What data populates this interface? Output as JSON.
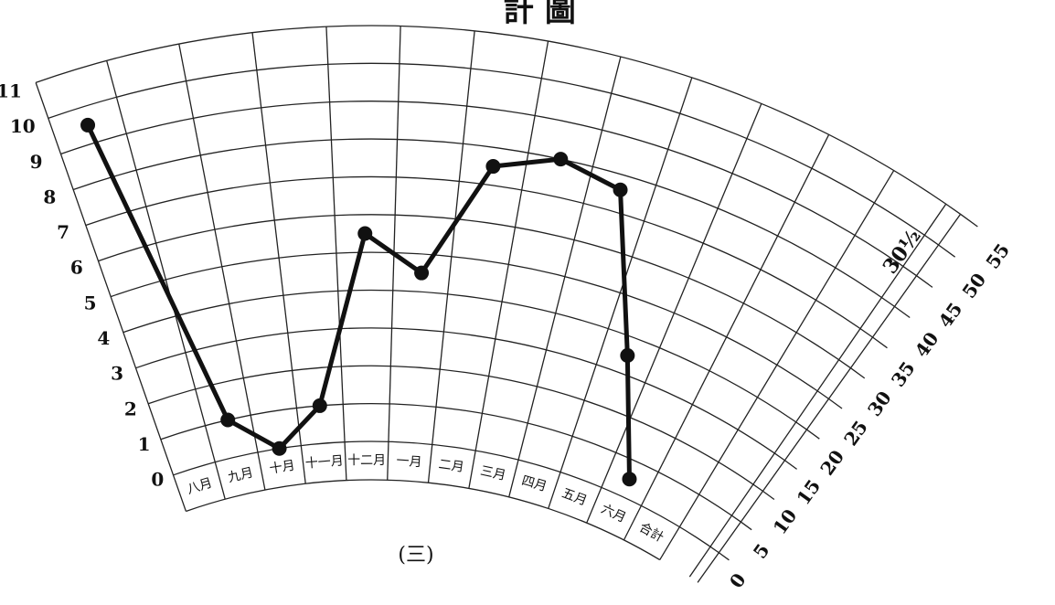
{
  "chart_data": {
    "type": "line",
    "title": "計 圖",
    "subtitle": "(三)",
    "categories": [
      "八月",
      "九月",
      "十月",
      "十一月",
      "十二月",
      "一月",
      "二月",
      "三月",
      "四月",
      "五月",
      "六月",
      "合計"
    ],
    "series": [
      {
        "color": "#111111",
        "values": [
          9.5,
          1,
          0,
          1,
          5.5,
          4.5,
          7.5,
          8,
          7.6,
          3.5,
          0.5,
          null
        ]
      }
    ],
    "ylim": [
      0,
      11
    ],
    "yticks": [
      0,
      1,
      2,
      3,
      4,
      5,
      6,
      7,
      8,
      9,
      10,
      11
    ],
    "y2lim": [
      0,
      55
    ],
    "y2ticks": [
      0,
      5,
      10,
      15,
      20,
      25,
      30,
      35,
      40,
      45,
      50,
      55
    ],
    "annotation": "30½",
    "grid": true
  }
}
